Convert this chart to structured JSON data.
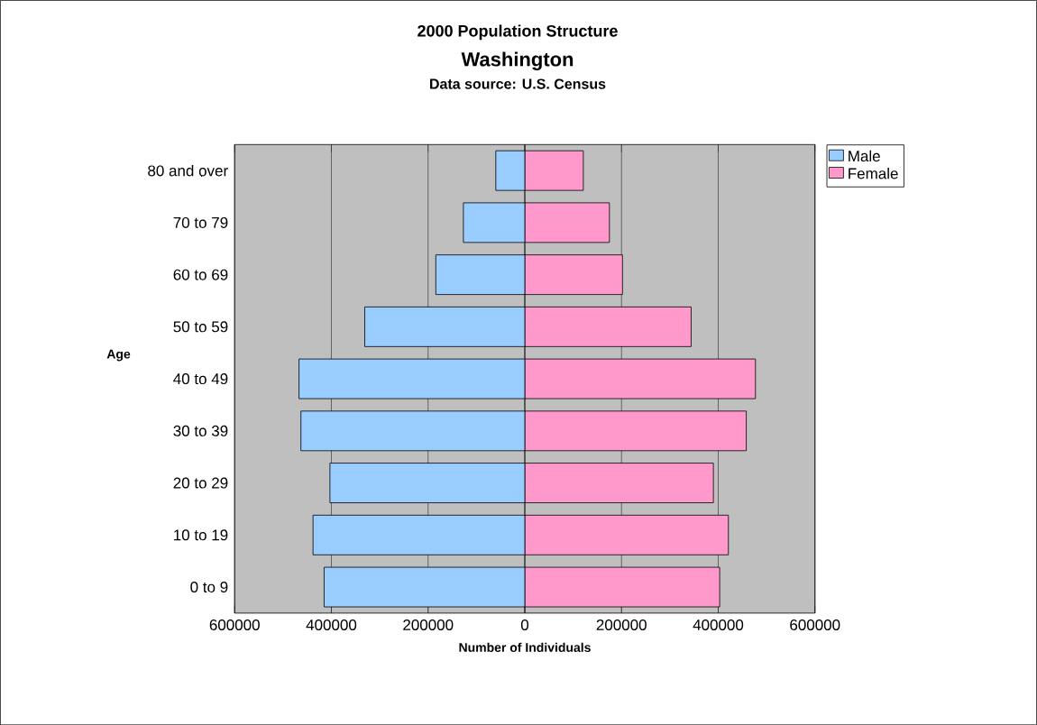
{
  "chart_data": {
    "type": "bar",
    "orientation": "horizontal",
    "title": "2000 Population Structure",
    "subtitle": "Washington",
    "annotations": [
      "Data source: U.S. Census"
    ],
    "xlabel": "Number of Individuals",
    "ylabel": "Age",
    "categories": [
      "80 and over",
      "70 to 79",
      "60 to 69",
      "50 to 59",
      "40 to 49",
      "30 to 39",
      "20 to 29",
      "10 to 19",
      "0 to 9"
    ],
    "series": [
      {
        "name": "Male",
        "color": "#99ccff",
        "values": [
          -60000,
          -127000,
          -184000,
          -331000,
          -467000,
          -463000,
          -403000,
          -438000,
          -415000
        ]
      },
      {
        "name": "Female",
        "color": "#ff99cc",
        "values": [
          121000,
          175000,
          202000,
          344000,
          477000,
          458000,
          390000,
          421000,
          403000
        ]
      }
    ],
    "xlim": [
      -600000,
      600000
    ],
    "xticks": [
      {
        "value": -600000,
        "label": "600000"
      },
      {
        "value": -400000,
        "label": "400000"
      },
      {
        "value": -200000,
        "label": "200000"
      },
      0,
      200000,
      400000,
      600000
    ],
    "grid": "x",
    "legend": "top right",
    "stacked": true
  }
}
